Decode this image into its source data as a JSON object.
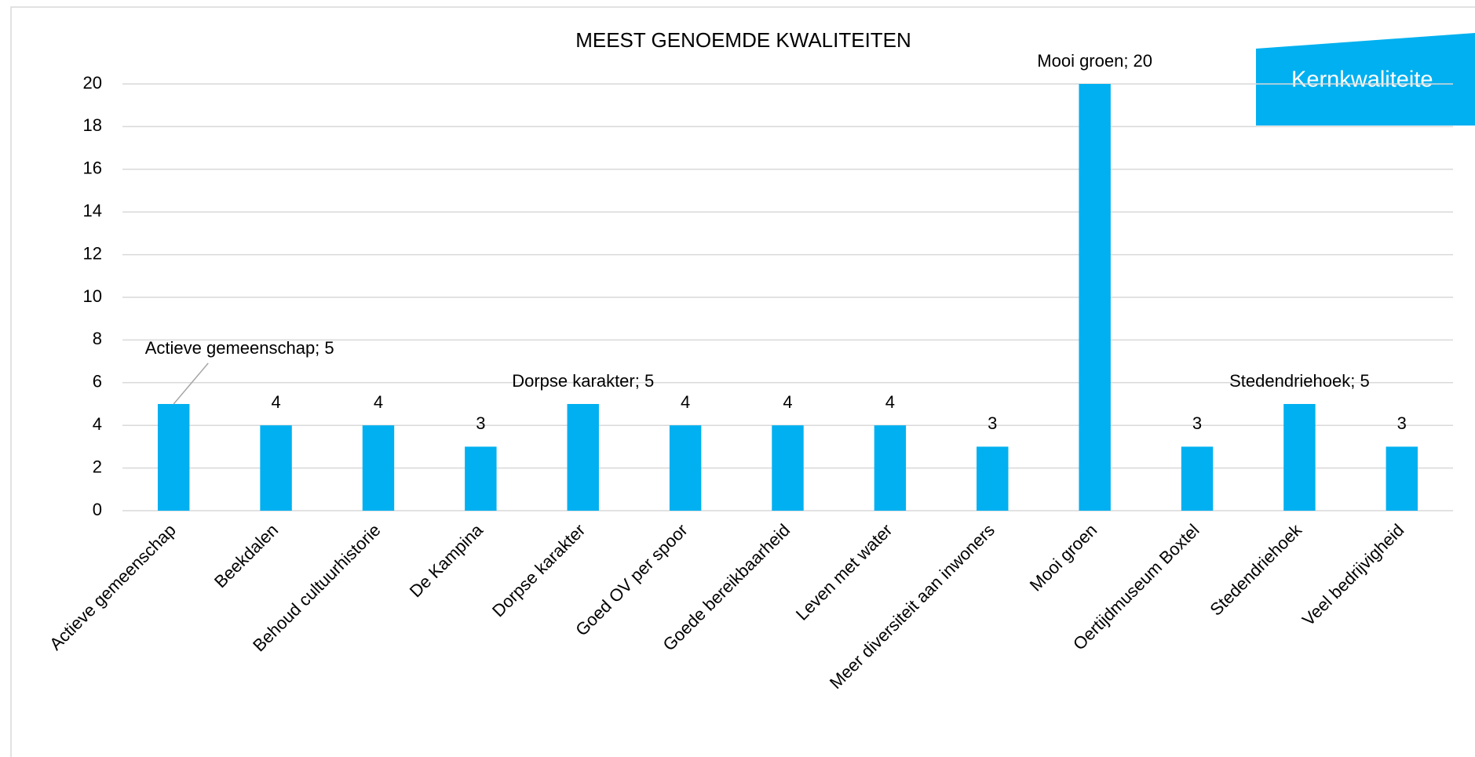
{
  "chart_data": {
    "type": "bar",
    "title": "MEEST GENOEMDE KWALITEITEN",
    "categories": [
      "Actieve gemeenschap",
      "Beekdalen",
      "Behoud cultuurhistorie",
      "De Kampina",
      "Dorpse karakter",
      "Goed OV per spoor",
      "Goede bereikbaarheid",
      "Leven met water",
      "Meer diversiteit aan inwoners",
      "Mooi groen",
      "Oertijdmuseum Boxtel",
      "Stedendriehoek",
      "Veel bedrijvigheid"
    ],
    "values": [
      5,
      4,
      4,
      3,
      5,
      4,
      4,
      4,
      3,
      20,
      3,
      5,
      3
    ],
    "value_labels": [
      "Actieve gemeenschap; 5",
      "4",
      "4",
      "3",
      "Dorpse karakter; 5",
      "4",
      "4",
      "4",
      "3",
      "Mooi groen; 20",
      "3",
      "Stedendriehoek; 5",
      "3"
    ],
    "color": "#00b0f0",
    "ylim": [
      0,
      20
    ],
    "yticks": [
      0,
      2,
      4,
      6,
      8,
      10,
      12,
      14,
      16,
      18,
      20
    ],
    "grid": true,
    "banner": "Kernkwaliteite"
  }
}
